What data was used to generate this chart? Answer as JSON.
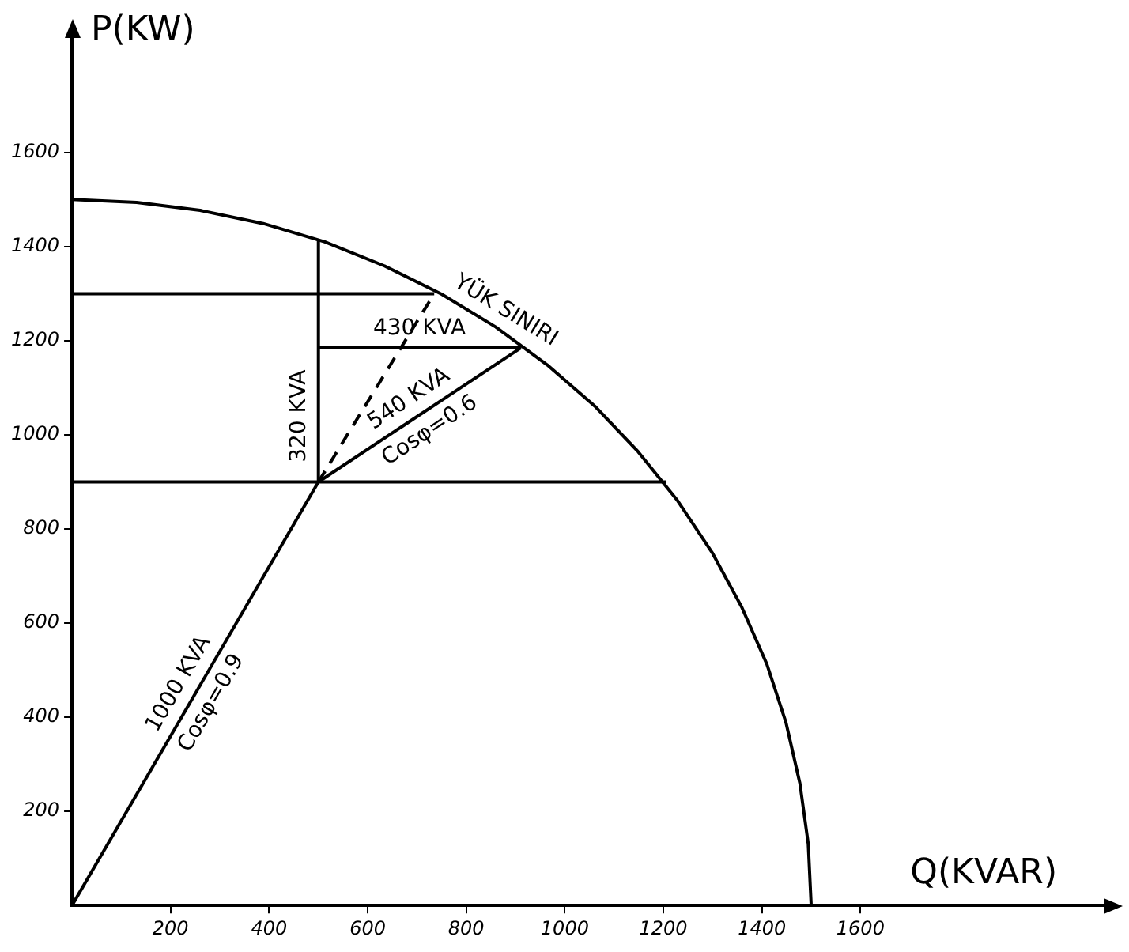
{
  "chart_data": {
    "type": "line",
    "xlabel": "Q(KVAR)",
    "ylabel": "P(KW)",
    "xlim": [
      0,
      2100
    ],
    "ylim": [
      0,
      1850
    ],
    "xticks": [
      200,
      400,
      600,
      800,
      1000,
      1200,
      1400,
      1600
    ],
    "yticks": [
      200,
      400,
      600,
      800,
      1000,
      1200,
      1400,
      1600
    ],
    "grid": false,
    "legend": false,
    "marker": "none",
    "series": [
      {
        "color": "#000000",
        "x": [
          0,
          131,
          260,
          388,
          513,
          634,
          750,
          860,
          964,
          1061,
          1149,
          1229,
          1299,
          1359,
          1410,
          1449,
          1477,
          1494,
          1500
        ],
        "values": [
          1500,
          1494,
          1477,
          1449,
          1410,
          1359,
          1299,
          1229,
          1149,
          1061,
          964,
          860,
          750,
          634,
          513,
          388,
          260,
          131,
          0
        ]
      },
      {
        "color": "#000000",
        "x": [
          0,
          500
        ],
        "values": [
          0,
          900
        ]
      },
      {
        "color": "#000000",
        "x": [
          500,
          500,
          500
        ],
        "values": [
          900,
          1185,
          1415
        ]
      },
      {
        "color": "#000000",
        "x": [
          500,
          911
        ],
        "values": [
          1185,
          1185
        ]
      },
      {
        "color": "#000000",
        "x": [
          500,
          911
        ],
        "values": [
          900,
          1185
        ]
      },
      {
        "color": "#000000",
        "line_style": "dashed",
        "x": [
          500,
          735
        ],
        "values": [
          900,
          1300
        ]
      },
      {
        "color": "#000000",
        "x": [
          0,
          1205
        ],
        "values": [
          900,
          900
        ]
      },
      {
        "color": "#000000",
        "x": [
          0,
          735
        ],
        "values": [
          1300,
          1300
        ]
      }
    ],
    "annotations": [
      {
        "text": "1000 KVA",
        "x": 250,
        "y": 450
      },
      {
        "text": "Cosφ=0.9",
        "x": 250,
        "y": 450
      },
      {
        "text": "320 KVA",
        "x": 500,
        "y": 1040
      },
      {
        "text": "430 KVA",
        "x": 705,
        "y": 1185
      },
      {
        "text": "540 KVA",
        "x": 705,
        "y": 1042
      },
      {
        "text": "Cosφ=0.6",
        "x": 705,
        "y": 1042
      },
      {
        "text": "YÜK SINIRI",
        "x": 860,
        "y": 1229
      }
    ]
  }
}
